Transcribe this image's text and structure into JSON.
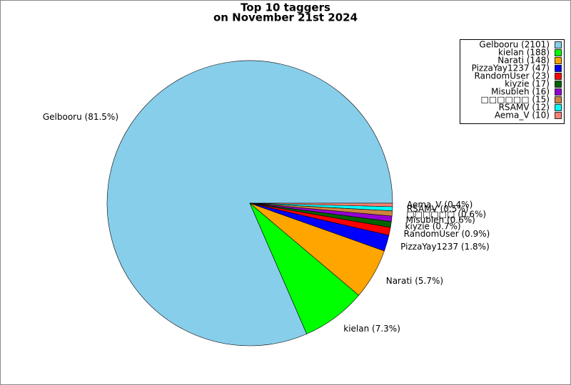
{
  "chart_data": {
    "type": "pie",
    "title": "Top 10 taggers",
    "subtitle": "on November 21st 2024",
    "values": [
      2101,
      188,
      148,
      47,
      23,
      17,
      16,
      15,
      12,
      10
    ],
    "labels": [
      "Gelbooru (81.5%)",
      "kielan (7.3%)",
      "Narati (5.7%)",
      "PizzaYay1237 (1.8%)",
      "RandomUser (0.9%)",
      "kiyzie (0.7%)",
      "Misubleh (0.6%)",
      "□□□□□□ (0.6%)",
      "RSAMV (0.5%)",
      "Aema_V (0.4%)"
    ],
    "legend": [
      "Gelbooru (2101)",
      "kielan (188)",
      "Narati (148)",
      "PizzaYay1237 (47)",
      "RandomUser (23)",
      "kiyzie (17)",
      "Misubleh (16)",
      "□□□□□□ (15)",
      "RSAMV (12)",
      "Aema_V (10)"
    ],
    "colors": [
      "#87ceeb",
      "#00ff00",
      "#ffa500",
      "#0000ff",
      "#ff0000",
      "#006400",
      "#9400d3",
      "#cd853f",
      "#00ffff",
      "#fa8072"
    ],
    "legend_position": "upper right"
  }
}
